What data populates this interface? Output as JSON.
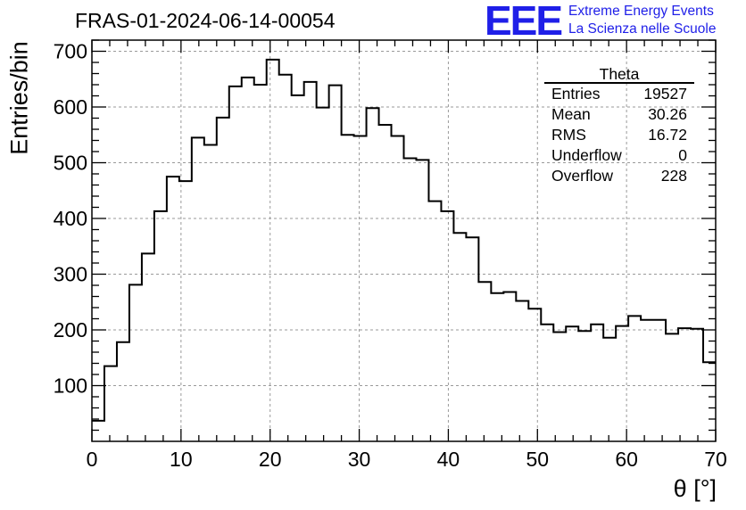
{
  "header": {
    "title": "FRAS-01-2024-06-14-00054"
  },
  "logo": {
    "text": "EEE",
    "line1": "Extreme Energy Events",
    "line2": "La Scienza nelle Scuole",
    "color": "#1f1fe8"
  },
  "stats": {
    "title": "Theta",
    "rows": [
      {
        "label": "Entries",
        "value": "19527"
      },
      {
        "label": "Mean",
        "value": "30.26"
      },
      {
        "label": "RMS",
        "value": "16.72"
      },
      {
        "label": "Underflow",
        "value": "0"
      },
      {
        "label": "Overflow",
        "value": "228"
      }
    ]
  },
  "chart_data": {
    "type": "histogram",
    "xlabel": "θ [°]",
    "ylabel": "Entries/bin",
    "xlim": [
      0,
      70
    ],
    "ylim": [
      0,
      720
    ],
    "grid": true,
    "bin_width": 1.4,
    "x_ticks": [
      0,
      10,
      20,
      30,
      40,
      50,
      60,
      70
    ],
    "y_ticks": [
      100,
      200,
      300,
      400,
      500,
      600,
      700
    ],
    "values": [
      37,
      135,
      178,
      281,
      337,
      413,
      475,
      467,
      545,
      532,
      581,
      637,
      653,
      640,
      685,
      658,
      621,
      645,
      599,
      639,
      550,
      548,
      598,
      568,
      548,
      508,
      505,
      431,
      413,
      374,
      366,
      286,
      266,
      268,
      252,
      238,
      210,
      196,
      206,
      198,
      210,
      186,
      207,
      225,
      218,
      218,
      193,
      203,
      202,
      142
    ]
  }
}
